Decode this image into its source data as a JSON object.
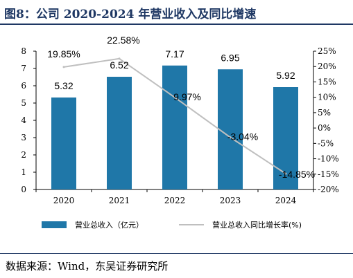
{
  "figure_title": "图8：公司 2020-2024 年营业收入及同比增速",
  "source": "数据来源：Wind，东吴证券研究所",
  "chart_data": {
    "type": "bar",
    "title": "",
    "categories": [
      "2020",
      "2021",
      "2022",
      "2023",
      "2024"
    ],
    "left_axis": {
      "ylim": [
        0,
        8
      ],
      "ticks": [
        "0",
        "1",
        "2",
        "3",
        "4",
        "5",
        "6",
        "7",
        "8"
      ]
    },
    "right_axis": {
      "ylim": [
        -20,
        25
      ],
      "ticks": [
        "-20%",
        "-15%",
        "-10%",
        "-5%",
        "0%",
        "5%",
        "10%",
        "15%",
        "20%",
        "25%"
      ]
    },
    "series": [
      {
        "name": "营业总收入（亿元）",
        "type": "bar",
        "axis": "left",
        "color": "#1f77a8",
        "values": [
          5.32,
          6.52,
          7.17,
          6.95,
          5.92
        ],
        "labels": [
          "5.32",
          "6.52",
          "7.17",
          "6.95",
          "5.92"
        ]
      },
      {
        "name": "营业总收入同比增长率(%)",
        "type": "line",
        "axis": "right",
        "color": "#bfbfbf",
        "values": [
          19.85,
          22.58,
          9.97,
          -3.04,
          -14.85
        ],
        "labels": [
          "19.85%",
          "22.58%",
          "9.97%",
          "-3.04%",
          "-14.85%"
        ]
      }
    ],
    "legend_position": "bottom",
    "grid": false
  }
}
